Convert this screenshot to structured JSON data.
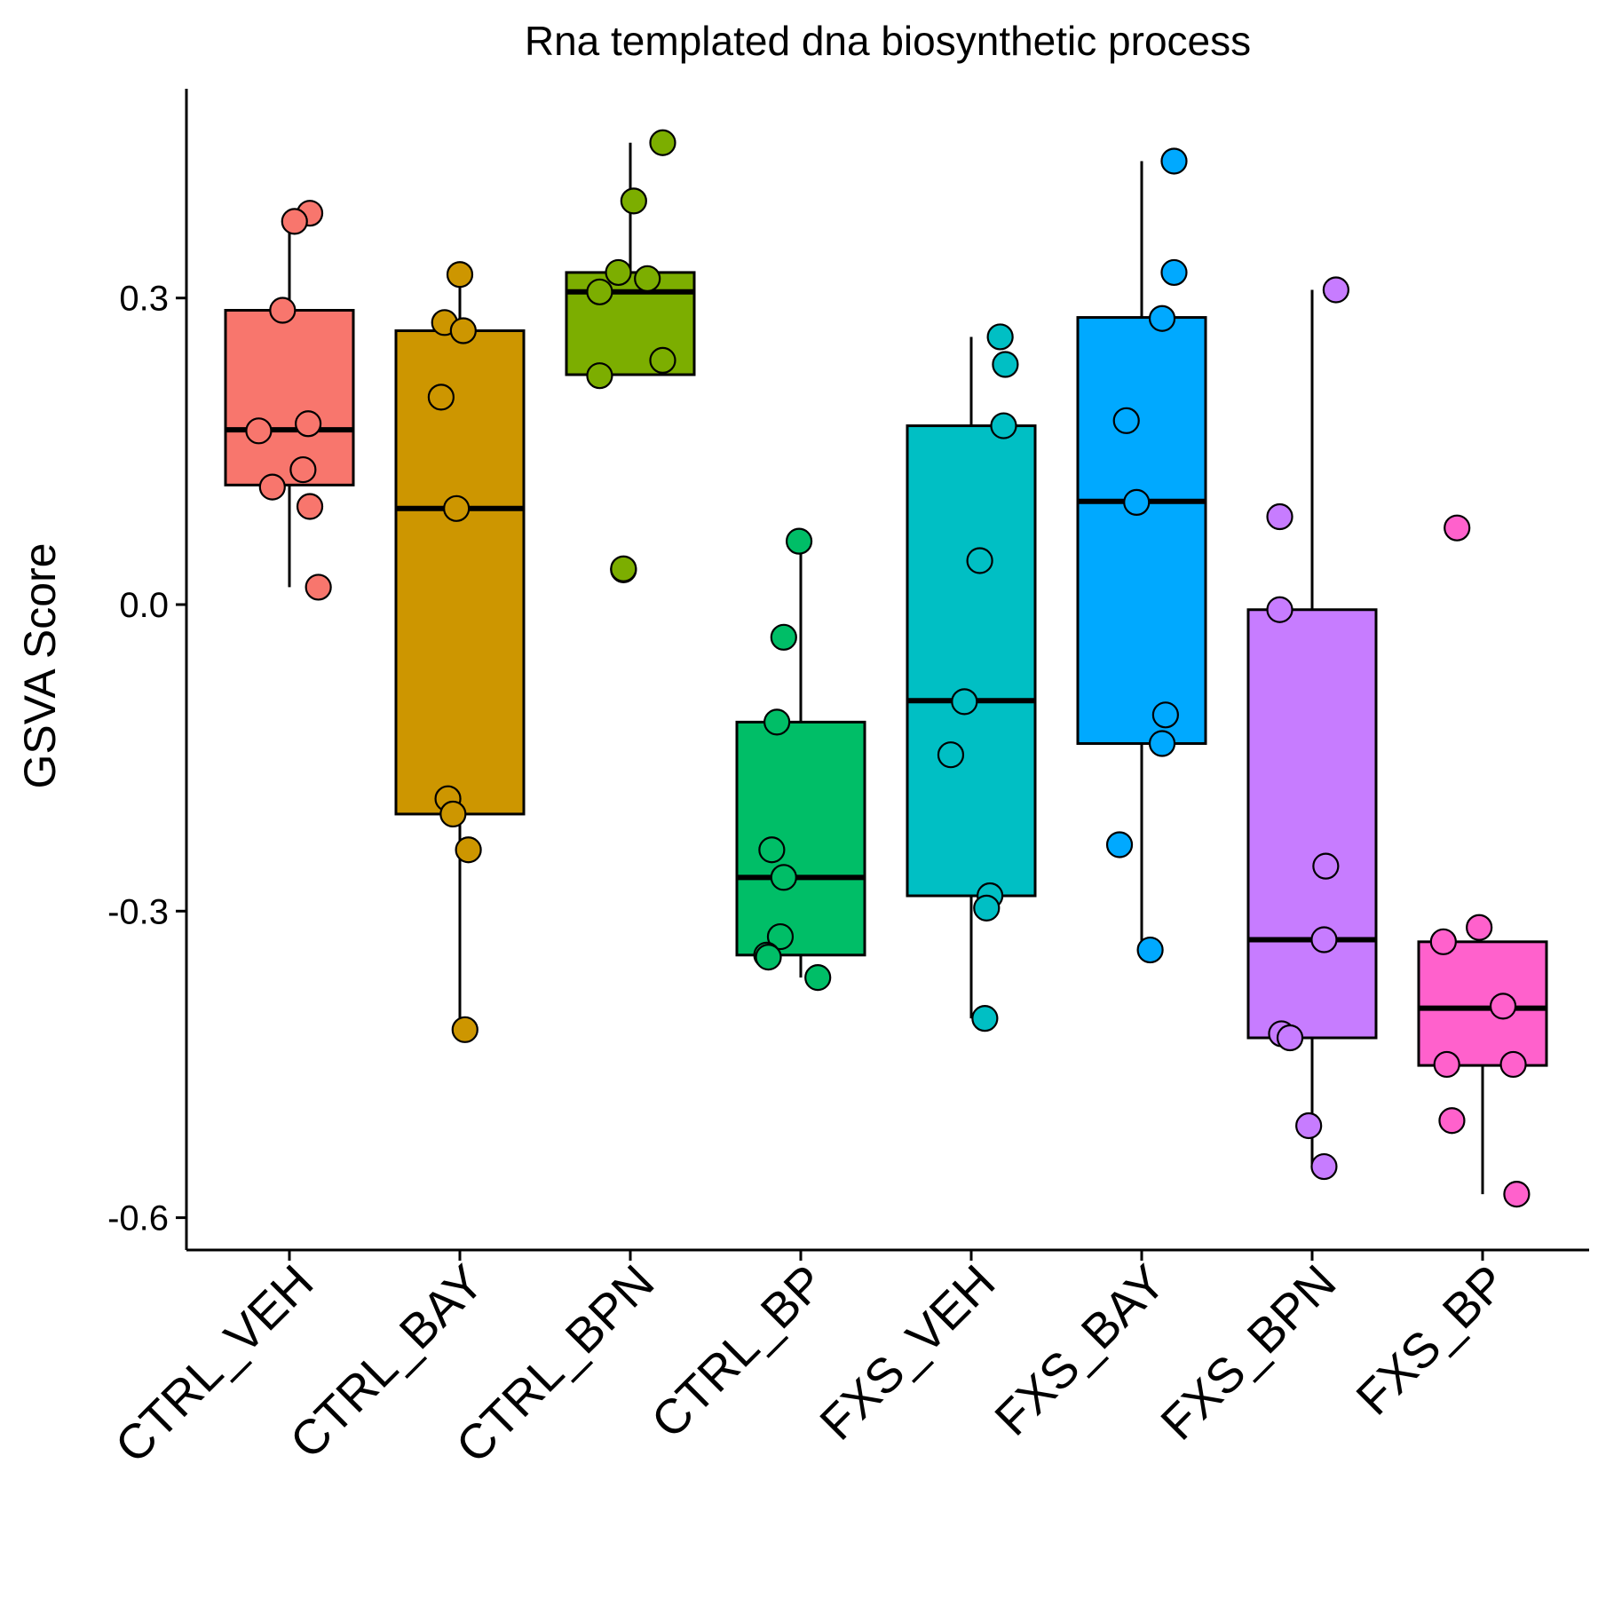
{
  "chart_data": {
    "type": "box",
    "title": "Rna templated dna biosynthetic process",
    "xlabel": "",
    "ylabel": "GSVA Score",
    "ylim": [
      -0.63,
      0.505
    ],
    "yticks": [
      0.3,
      0.0,
      -0.3,
      -0.6
    ],
    "ytick_labels": [
      "0.3",
      "0.0",
      "-0.3",
      "-0.6"
    ],
    "grid": false,
    "legend": "none",
    "categories": [
      "CTRL_VEH",
      "CTRL_BAY",
      "CTRL_BPN",
      "CTRL_BP",
      "FXS_VEH",
      "FXS_BAY",
      "FXS_BPN",
      "FXS_BP"
    ],
    "colors": [
      "#F8766D",
      "#CD9600",
      "#7CAE00",
      "#00BE67",
      "#00BFC4",
      "#00A9FF",
      "#C77CFF",
      "#FF61CC"
    ],
    "boxes": [
      {
        "whisker_low": 0.017,
        "q1": 0.117,
        "median": 0.171,
        "q3": 0.288,
        "whisker_high": 0.367
      },
      {
        "whisker_low": -0.416,
        "q1": -0.205,
        "median": 0.094,
        "q3": 0.268,
        "whisker_high": 0.312
      },
      {
        "whisker_low": 0.225,
        "q1": 0.225,
        "median": 0.306,
        "q3": 0.325,
        "whisker_high": 0.452
      },
      {
        "whisker_low": -0.365,
        "q1": -0.343,
        "median": -0.267,
        "q3": -0.115,
        "whisker_high": 0.052
      },
      {
        "whisker_low": -0.405,
        "q1": -0.285,
        "median": -0.094,
        "q3": 0.175,
        "whisker_high": 0.262
      },
      {
        "whisker_low": -0.338,
        "q1": -0.136,
        "median": 0.101,
        "q3": 0.281,
        "whisker_high": 0.434
      },
      {
        "whisker_low": -0.55,
        "q1": -0.424,
        "median": -0.328,
        "q3": -0.005,
        "whisker_high": 0.308
      },
      {
        "whisker_low": -0.577,
        "q1": -0.451,
        "median": -0.395,
        "q3": -0.33,
        "whisker_high": -0.33
      }
    ],
    "points": [
      [
        0.383,
        0.375,
        0.288,
        0.177,
        0.17,
        0.132,
        0.115,
        0.096,
        0.017
      ],
      [
        0.323,
        0.276,
        0.268,
        0.203,
        0.094,
        -0.19,
        -0.205,
        -0.24,
        -0.416
      ],
      [
        0.452,
        0.395,
        0.325,
        0.319,
        0.306,
        0.239,
        0.224,
        0.034,
        0.035
      ],
      [
        0.062,
        -0.032,
        -0.115,
        -0.24,
        -0.267,
        -0.325,
        -0.343,
        -0.345,
        -0.365
      ],
      [
        0.262,
        0.235,
        0.175,
        0.043,
        -0.095,
        -0.147,
        -0.285,
        -0.297,
        -0.405
      ],
      [
        0.434,
        0.325,
        0.28,
        0.18,
        0.1,
        -0.108,
        -0.136,
        -0.235,
        -0.338
      ],
      [
        0.308,
        0.086,
        -0.005,
        -0.256,
        -0.328,
        -0.42,
        -0.424,
        -0.51,
        -0.55
      ],
      [
        0.075,
        -0.316,
        -0.33,
        -0.393,
        -0.45,
        -0.45,
        -0.505,
        -0.577
      ]
    ],
    "point_offsets": [
      [
        0.12,
        0.03,
        -0.04,
        0.11,
        -0.18,
        0.08,
        -0.1,
        0.12,
        0.17
      ],
      [
        0.0,
        -0.09,
        0.02,
        -0.11,
        -0.02,
        -0.07,
        -0.04,
        0.05,
        0.03
      ],
      [
        0.19,
        0.02,
        -0.07,
        0.1,
        -0.18,
        0.19,
        -0.18,
        -0.04,
        -0.04
      ],
      [
        -0.01,
        -0.1,
        -0.14,
        -0.17,
        -0.1,
        -0.12,
        -0.2,
        -0.19,
        0.1
      ],
      [
        0.17,
        0.2,
        0.19,
        0.05,
        -0.04,
        -0.12,
        0.11,
        0.09,
        0.08
      ],
      [
        0.19,
        0.19,
        0.12,
        -0.09,
        -0.03,
        0.14,
        0.12,
        -0.13,
        0.05
      ],
      [
        0.14,
        -0.19,
        -0.19,
        0.08,
        0.07,
        -0.18,
        -0.13,
        -0.02,
        0.07
      ],
      [
        -0.15,
        -0.02,
        -0.23,
        0.12,
        -0.21,
        0.18,
        -0.18,
        0.2
      ]
    ]
  }
}
